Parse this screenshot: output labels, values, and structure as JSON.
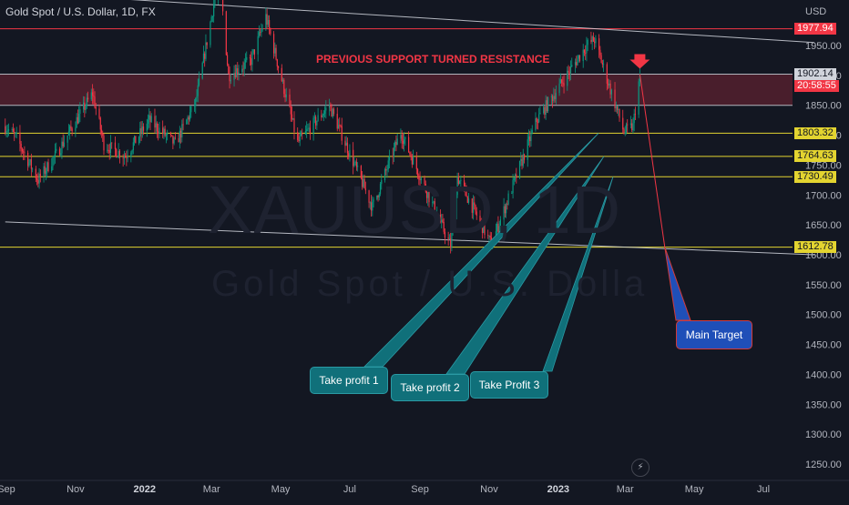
{
  "header": {
    "symbol_title": "Gold Spot / U.S. Dollar, 1D, FX"
  },
  "watermark": {
    "ticker": "XAUUSD, 1D",
    "name": "Gold Spot / U.S. Dolla"
  },
  "annotations": {
    "resistance_text": "PREVIOUS SUPPORT TURNED RESISTANCE",
    "take_profit_1": "Take profit 1",
    "take_profit_2": "Take profit 2",
    "take_profit_3": "Take Profit 3",
    "main_target": "Main Target"
  },
  "colors": {
    "background": "#131722",
    "candle_up": "#089981",
    "candle_down": "#f23645",
    "support_line": "#e3d430",
    "resistance_line": "#f23645",
    "zone_fill": "#5c2130",
    "callout": "#10707a",
    "target_box": "#1f4fb8"
  },
  "chart_data": {
    "type": "candlestick",
    "title": "",
    "xlabel": "",
    "ylabel": "USD",
    "ylim": [
      1230,
      2050
    ],
    "y_ticks": [
      1250,
      1300,
      1350,
      1400,
      1450,
      1500,
      1550,
      1600,
      1650,
      1700,
      1750,
      1800,
      1850,
      1900,
      1950
    ],
    "x_ticks": [
      {
        "label": "Sep",
        "date": "2021-09-01",
        "bold": false
      },
      {
        "label": "Nov",
        "date": "2021-11-01",
        "bold": false
      },
      {
        "label": "2022",
        "date": "2022-01-01",
        "bold": true
      },
      {
        "label": "Mar",
        "date": "2022-03-01",
        "bold": false
      },
      {
        "label": "May",
        "date": "2022-05-01",
        "bold": false
      },
      {
        "label": "Jul",
        "date": "2022-07-01",
        "bold": false
      },
      {
        "label": "Sep",
        "date": "2022-09-01",
        "bold": false
      },
      {
        "label": "Nov",
        "date": "2022-11-01",
        "bold": false
      },
      {
        "label": "2023",
        "date": "2023-01-01",
        "bold": true
      },
      {
        "label": "Mar",
        "date": "2023-03-01",
        "bold": false
      },
      {
        "label": "May",
        "date": "2023-05-01",
        "bold": false
      },
      {
        "label": "Jul",
        "date": "2023-07-01",
        "bold": false
      }
    ],
    "price_path": [
      {
        "date": "2021-08-31",
        "price": 1815
      },
      {
        "date": "2021-09-10",
        "price": 1795
      },
      {
        "date": "2021-09-29",
        "price": 1725
      },
      {
        "date": "2021-10-15",
        "price": 1768
      },
      {
        "date": "2021-11-16",
        "price": 1870
      },
      {
        "date": "2021-11-26",
        "price": 1785
      },
      {
        "date": "2021-12-15",
        "price": 1765
      },
      {
        "date": "2022-01-05",
        "price": 1825
      },
      {
        "date": "2022-01-28",
        "price": 1785
      },
      {
        "date": "2022-02-15",
        "price": 1855
      },
      {
        "date": "2022-03-08",
        "price": 2070
      },
      {
        "date": "2022-03-16",
        "price": 1900
      },
      {
        "date": "2022-04-05",
        "price": 1925
      },
      {
        "date": "2022-04-18",
        "price": 1998
      },
      {
        "date": "2022-05-16",
        "price": 1787
      },
      {
        "date": "2022-06-13",
        "price": 1850
      },
      {
        "date": "2022-07-21",
        "price": 1680
      },
      {
        "date": "2022-08-15",
        "price": 1805
      },
      {
        "date": "2022-09-28",
        "price": 1615
      },
      {
        "date": "2022-10-04",
        "price": 1730
      },
      {
        "date": "2022-11-03",
        "price": 1617
      },
      {
        "date": "2022-12-13",
        "price": 1825
      },
      {
        "date": "2023-01-26",
        "price": 1950
      },
      {
        "date": "2023-02-02",
        "price": 1960
      },
      {
        "date": "2023-02-28",
        "price": 1805
      },
      {
        "date": "2023-03-08",
        "price": 1815
      },
      {
        "date": "2023-03-14",
        "price": 1902.14
      }
    ],
    "horizontal_levels": [
      {
        "price": 1977.94,
        "label": "1977.94",
        "color": "#f23645"
      },
      {
        "price": 1902.14,
        "label": "1902.14",
        "color": "#b2b5be"
      },
      {
        "price": 1850,
        "label": "",
        "color": "#b2b5be"
      },
      {
        "price": 1803.32,
        "label": "1803.32",
        "color": "#e3d430"
      },
      {
        "price": 1764.63,
        "label": "1764.63",
        "color": "#e3d430"
      },
      {
        "price": 1730.49,
        "label": "1730.49",
        "color": "#e3d430"
      },
      {
        "price": 1612.78,
        "label": "1612.78",
        "color": "#e3d430"
      }
    ],
    "resistance_zone": {
      "top": 1902.14,
      "bottom": 1850
    },
    "current_price_label": "1902.14",
    "countdown_label": "20:58:55",
    "trend_lines": [
      {
        "from": {
          "date": "2021-08-31",
          "price": 2040
        },
        "to": {
          "date": "2023-08-15",
          "price": 1955
        }
      },
      {
        "from": {
          "date": "2021-08-31",
          "price": 1655
        },
        "to": {
          "date": "2023-08-15",
          "price": 1600
        }
      }
    ],
    "projection": {
      "from": {
        "date": "2023-03-14",
        "price": 1902.14
      },
      "to": {
        "date": "2023-04-05",
        "price": 1612.78
      }
    },
    "take_profit_targets": [
      1803.32,
      1764.63,
      1730.49
    ],
    "main_target": 1612.78
  }
}
